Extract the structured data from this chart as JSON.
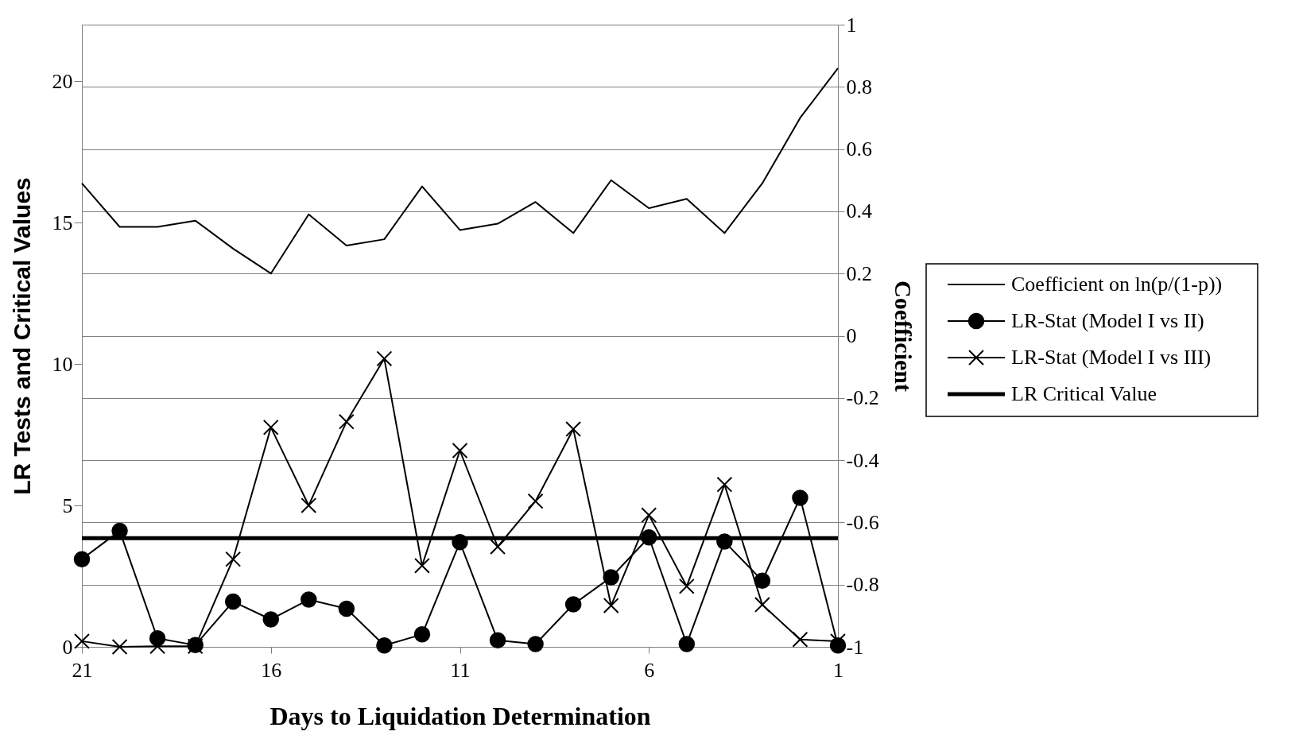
{
  "chart_data": {
    "type": "line",
    "xlabel": "Days to Liquidation Determination",
    "ylabel": "LR Tests and Critical Values",
    "y2label": "Coefficient",
    "x": [
      21,
      20,
      19,
      18,
      17,
      16,
      15,
      14,
      13,
      12,
      11,
      10,
      9,
      8,
      7,
      6,
      5,
      4,
      3,
      2,
      1
    ],
    "xlim": [
      21,
      1
    ],
    "xticks": [
      21,
      16,
      11,
      6,
      1
    ],
    "ylim": [
      0,
      22
    ],
    "yticks": [
      0,
      5,
      10,
      15,
      20
    ],
    "y2lim": [
      -1,
      1
    ],
    "y2ticks": [
      -1,
      -0.8,
      -0.6,
      -0.4,
      -0.2,
      0,
      0.2,
      0.4,
      0.6,
      0.8,
      1
    ],
    "grid": "y",
    "legend": "right",
    "series": [
      {
        "name": "Coefficient on ln(p/(1-p))",
        "color": "#000000",
        "axis": "y2",
        "marker": "none",
        "values": [
          0.49,
          0.35,
          0.35,
          0.37,
          0.28,
          0.2,
          0.39,
          0.29,
          0.31,
          0.48,
          0.34,
          0.36,
          0.43,
          0.33,
          0.5,
          0.41,
          0.44,
          0.33,
          0.49,
          0.7,
          0.86
        ]
      },
      {
        "name": "LR-Stat (Model I vs II)",
        "color": "#000000",
        "marker": "circle",
        "values": [
          3.1,
          4.1,
          0.3,
          0.06,
          1.6,
          0.97,
          1.67,
          1.35,
          0.05,
          0.44,
          3.7,
          0.23,
          0.1,
          1.5,
          2.46,
          3.87,
          0.1,
          3.72,
          2.34,
          5.27,
          0.05
        ]
      },
      {
        "name": "LR-Stat (Model I vs III)",
        "color": "#000000",
        "marker": "cross",
        "values": [
          0.2,
          0,
          0.02,
          0.02,
          3.1,
          7.76,
          5.0,
          7.96,
          10.19,
          2.87,
          6.94,
          3.54,
          5.15,
          7.7,
          1.46,
          4.66,
          2.14,
          5.74,
          1.49,
          0.26,
          0.2
        ]
      }
    ],
    "ref_lines": [
      {
        "axis": "y",
        "value": 3.84,
        "label": "LR Critical Value",
        "color": "#000000",
        "line_style": "solid"
      }
    ]
  }
}
